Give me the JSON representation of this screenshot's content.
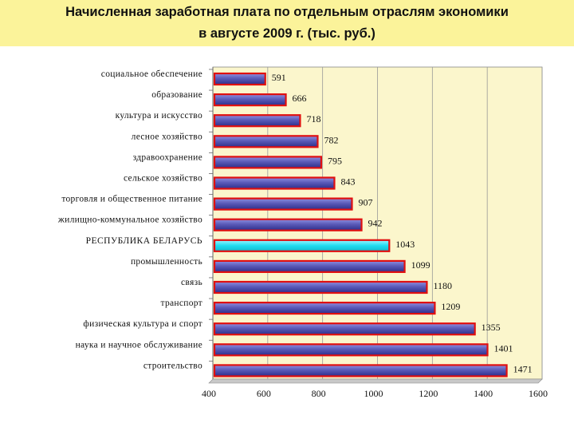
{
  "title": {
    "line1": "Начисленная заработная плата по отдельным отраслям экономики",
    "line2": "в августе 2009 г. (тыс. руб.)"
  },
  "colors": {
    "plot_bg": "#fbf6cc",
    "bar_fill": "#5a5ab8",
    "bar_stroke": "#e01010",
    "highlight_fill": "#20dcf0",
    "title_bg": "#fbf39a"
  },
  "chart_data": {
    "type": "bar",
    "orientation": "horizontal",
    "title": "Начисленная заработная плата по отдельным отраслям экономики в августе 2009 г. (тыс. руб.)",
    "xlabel": "",
    "ylabel": "",
    "xlim": [
      400,
      1600
    ],
    "xticks": [
      400,
      600,
      800,
      1000,
      1200,
      1400,
      1600
    ],
    "grid": true,
    "highlight_category": "РЕСПУБЛИКА БЕЛАРУСЬ",
    "categories": [
      "социальное обеспечение",
      "образование",
      "культура и искусство",
      "лесное хозяйство",
      "здравоохранение",
      "сельское хозяйство",
      "торговля и общественное питание",
      "жилищно-коммунальное хозяйство",
      "РЕСПУБЛИКА БЕЛАРУСЬ",
      "промышленность",
      "связь",
      "транспорт",
      "физическая культура и спорт",
      "наука и научное обслуживание",
      "строительство"
    ],
    "values": [
      591,
      666,
      718,
      782,
      795,
      843,
      907,
      942,
      1043,
      1099,
      1180,
      1209,
      1355,
      1401,
      1471
    ]
  }
}
